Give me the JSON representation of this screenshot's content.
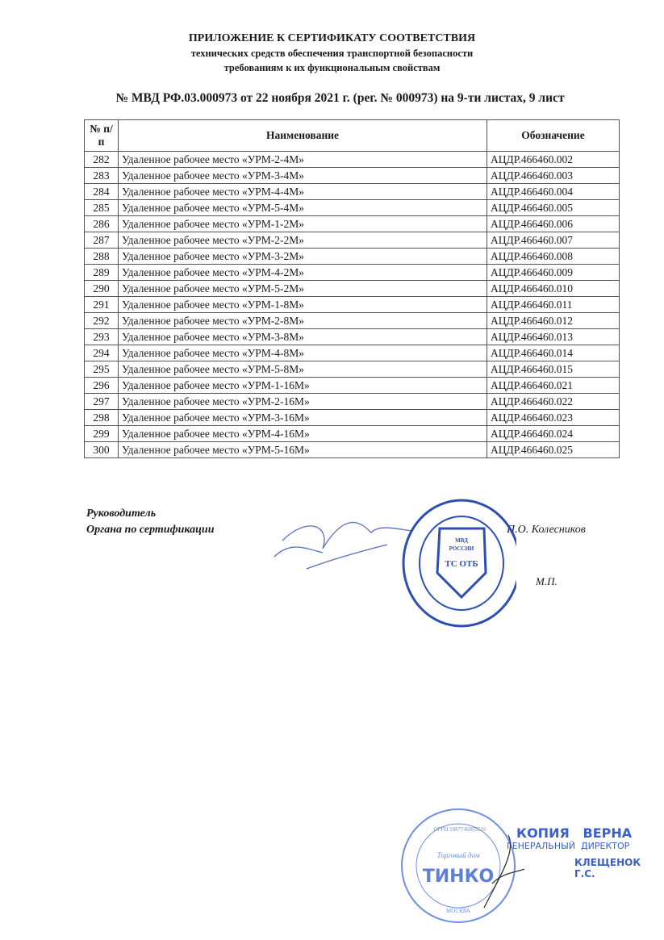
{
  "header": {
    "title": "ПРИЛОЖЕНИЕ К СЕРТИФИКАТУ СООТВЕТСТВИЯ",
    "subtitle1": "технических средств обеспечения транспортной безопасности",
    "subtitle2": "требованиям к их функциональным свойствам",
    "number_line": "№ МВД РФ.03.000973 от 22 ноября 2021 г. (рег. № 000973) на 9-ти листах, 9 лист"
  },
  "table": {
    "columns": [
      "№ п/п",
      "Наименование",
      "Обозначение"
    ],
    "rows": [
      [
        "282",
        "Удаленное рабочее место «УРМ-2-4М»",
        "АЦДР.466460.002"
      ],
      [
        "283",
        "Удаленное рабочее место «УРМ-3-4М»",
        "АЦДР.466460.003"
      ],
      [
        "284",
        "Удаленное рабочее место «УРМ-4-4М»",
        "АЦДР.466460.004"
      ],
      [
        "285",
        "Удаленное рабочее место «УРМ-5-4М»",
        "АЦДР.466460.005"
      ],
      [
        "286",
        "Удаленное рабочее место «УРМ-1-2М»",
        "АЦДР.466460.006"
      ],
      [
        "287",
        "Удаленное рабочее место «УРМ-2-2М»",
        "АЦДР.466460.007"
      ],
      [
        "288",
        "Удаленное рабочее место «УРМ-3-2М»",
        "АЦДР.466460.008"
      ],
      [
        "289",
        "Удаленное рабочее место «УРМ-4-2М»",
        "АЦДР.466460.009"
      ],
      [
        "290",
        "Удаленное рабочее место «УРМ-5-2М»",
        "АЦДР.466460.010"
      ],
      [
        "291",
        "Удаленное рабочее место «УРМ-1-8М»",
        "АЦДР.466460.011"
      ],
      [
        "292",
        "Удаленное рабочее место «УРМ-2-8М»",
        "АЦДР.466460.012"
      ],
      [
        "293",
        "Удаленное рабочее место «УРМ-3-8М»",
        "АЦДР.466460.013"
      ],
      [
        "294",
        "Удаленное рабочее место «УРМ-4-8М»",
        "АЦДР.466460.014"
      ],
      [
        "295",
        "Удаленное рабочее место «УРМ-5-8М»",
        "АЦДР.466460.015"
      ],
      [
        "296",
        "Удаленное рабочее место «УРМ-1-16М»",
        "АЦДР.466460.021"
      ],
      [
        "297",
        "Удаленное рабочее место «УРМ-2-16М»",
        "АЦДР.466460.022"
      ],
      [
        "298",
        "Удаленное рабочее место «УРМ-3-16М»",
        "АЦДР.466460.023"
      ],
      [
        "299",
        "Удаленное рабочее место «УРМ-4-16М»",
        "АЦДР.466460.024"
      ],
      [
        "300",
        "Удаленное рабочее место «УРМ-5-16М»",
        "АЦДР.466460.025"
      ]
    ]
  },
  "signature": {
    "role1": "Руководитель",
    "role2": "Органа по сертификации",
    "name": "П.О. Колесников",
    "mp": "М.П.",
    "stamp_text": [
      "МВД",
      "РОССИИ",
      "ТС ОТБ"
    ]
  },
  "copy_stamp": {
    "line1": "КОПИЯ   ВЕРНА",
    "line2": "ГЕНЕРАЛЬНЫЙ  ДИРЕКТОР",
    "line3": "КЛЕЩЕНОК Г.С.",
    "seal_text": [
      "Торговый дом",
      "ТИНКО",
      "ОГРН 1087746895516",
      "МОСКВА"
    ]
  },
  "colors": {
    "stamp_blue": "#2b4fb5"
  }
}
